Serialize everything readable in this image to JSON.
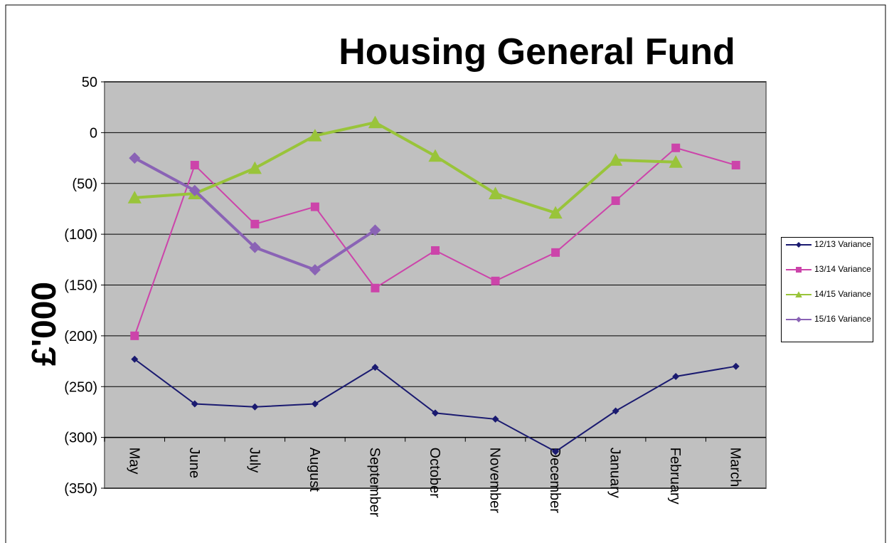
{
  "chart_data": {
    "type": "line",
    "title": "Housing General Fund",
    "y_label": "£'000",
    "categories": [
      "May",
      "June",
      "July",
      "August",
      "September",
      "October",
      "November",
      "December",
      "January",
      "February",
      "March"
    ],
    "series": [
      {
        "name": "12/13 Variance",
        "color": "#1a1a70",
        "marker": "diamond",
        "values": [
          -223,
          -267,
          -270,
          -267,
          -231,
          -276,
          -282,
          -314,
          -274,
          -240,
          -230
        ]
      },
      {
        "name": "13/14 Variance",
        "color": "#cc44aa",
        "marker": "square",
        "values": [
          -200,
          -32,
          -90,
          -73,
          -153,
          -116,
          -146,
          -118,
          -67,
          -15,
          -32
        ]
      },
      {
        "name": "14/15 Variance",
        "color": "#99c43a",
        "marker": "triangle",
        "values": [
          -64,
          -60,
          -35,
          -3,
          10,
          -23,
          -60,
          -79,
          -27,
          -29,
          null
        ]
      },
      {
        "name": "15/16 Variance",
        "color": "#8a63b5",
        "marker": "diamond",
        "values": [
          -25,
          -57,
          -113,
          -135,
          -96,
          null,
          null,
          null,
          null,
          null,
          null
        ]
      }
    ],
    "ylim": [
      -350,
      50
    ],
    "yticks": [
      {
        "value": -350,
        "label": "(350)"
      },
      {
        "value": -300,
        "label": "(300)"
      },
      {
        "value": -250,
        "label": "(250)"
      },
      {
        "value": -200,
        "label": "(200)"
      },
      {
        "value": -150,
        "label": "(150)"
      },
      {
        "value": -100,
        "label": "(100)"
      },
      {
        "value": -50,
        "label": "(50)"
      },
      0,
      50
    ],
    "xaxis_at": -300,
    "grid": true,
    "legend": "right"
  }
}
